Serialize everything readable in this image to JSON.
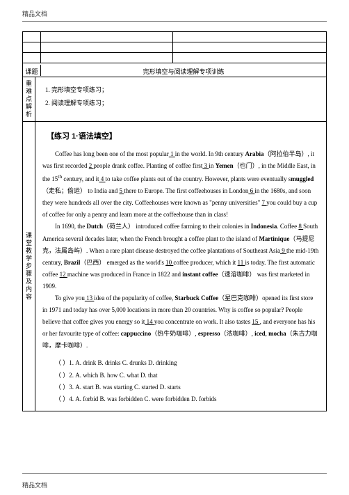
{
  "watermark": "精品文档",
  "table": {
    "topic_label": "课题",
    "topic_value": "完形填空与阅读理解专项训练",
    "difficulty_label": "重难点解析",
    "difficulty_lines": [
      "1. 完形填空专项练习；",
      "2. 阅读理解专项练习；"
    ],
    "steps_label": "课堂教学步骤及内容",
    "heading": "【练习 1·语法填空】"
  },
  "passage": {
    "p1a": "Coffee has long been one of the most popular",
    "b1": "   1   ",
    "p1b": " in the world. In 9th century ",
    "bold1": "Arabia",
    "p1c": "（阿拉伯半岛）, it was first recorded ",
    "b2": "   2   ",
    "p1d": " people drank coffee. Planting of coffee first",
    "b3": "   3   ",
    "p1e": " in ",
    "bold2": "Yemen",
    "p1f": "（也门）, in the Middle East, in the 15",
    "sup1": "th",
    "p1g": " century, and it",
    "b4": "   4   ",
    "p1h": " to take coffee plants out of the country. However, plants were eventually s",
    "bold3": "muggled",
    "p1i": "（走私；偷运） to India and ",
    "b5": "   5   ",
    "p1j": "there to Europe. The first coffeehouses in London",
    "b6": "   6   ",
    "p1k": " in the 1680s, and soon they were hundreds all over the city. Coffeehouses were known as \"penny universities\" ",
    "b7": "   7   ",
    "p1l": " you could buy a cup of coffee for only a penny and learn more at the coffeehouse than in class!",
    "p2a": "In 1690, the ",
    "bold4": "Dutch",
    "p2b": "（荷兰人） introduced coffee farming to their colonies in ",
    "bold5": "Indonesia",
    "p2c": ". Coffee ",
    "b8": "   8   ",
    "p2d": " South America several decades later, when the French brought a coffee plant to the island of ",
    "bold6": "Martinique",
    "p2e": "（马提尼克，法属岛屿）. When a rare plant disease destroyed the coffee plantations of Southeast Asia",
    "b9": "   9   ",
    "p2f": " the mid-19th century, ",
    "bold7": "Brazil",
    "p2g": "（巴西） emerged as the world's ",
    "b10": "  10  ",
    "p2h": " coffee producer, which it ",
    "b11": "  11  ",
    "p2i": " is today. The first automatic coffee ",
    "b12": "   12   ",
    "p2j": " machine was produced in France in 1822 and ",
    "bold8": "instant coffee",
    "p2k": "（速溶咖啡） was first marketed in 1909.",
    "p3a": "To give you",
    "b13": "   13   ",
    "p3b": " idea of the popularity of coffee, ",
    "bold9": "Starbuck Coffee",
    "p3c": "（星巴克咖啡）opened its first store in 1971 and today has over 5,000 locations in more than 20 countries. Why is coffee so popular? People believe that coffee gives you energy so it",
    "b14": "   14   ",
    "p3d": " you concentrate on work. It also tastes ",
    "b15": "   15   ",
    "p3e": ", and everyone has his or her favourite type of coffee: ",
    "bold10": "cappuccino",
    "p3f": "（热牛奶咖啡）, ",
    "bold11": "espresso",
    "p3g": "（浓咖啡）, ",
    "bold12": "iced",
    "p3h": ", ",
    "bold13": "mocha",
    "p3i": "（朱古力咖啡，摩卡咖啡）."
  },
  "questions": {
    "q1": "（  ）1. A. drink    B. drinks    C. drunks    D. drinking",
    "q2": "（  ）2. A. which    B. how    C. what    D. that",
    "q3": "（  ）3. A. start    B. was starting    C. started    D. starts",
    "q4": "（  ）4. A. forbid    B. was forbidden    C. were forbidden    D. forbids"
  }
}
